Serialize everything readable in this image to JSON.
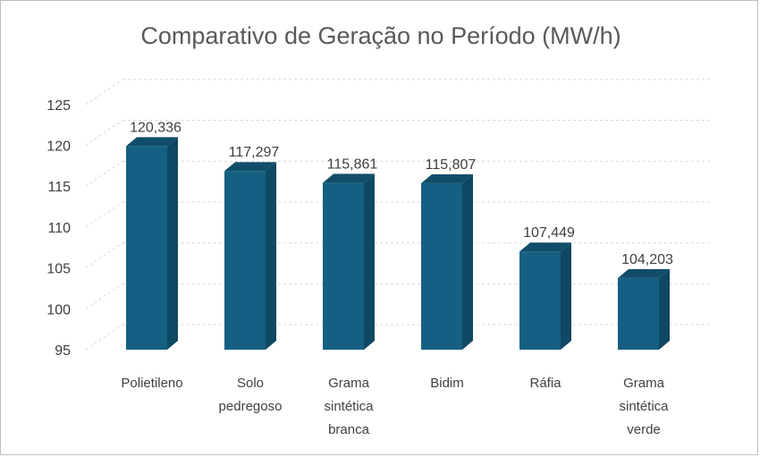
{
  "chart_data": {
    "type": "bar",
    "title": "Comparativo de Geração no Período (MW/h)",
    "categories": [
      [
        "Polietileno"
      ],
      [
        "Solo",
        "pedregoso"
      ],
      [
        "Grama",
        "sintética",
        "branca"
      ],
      [
        "Bidim"
      ],
      [
        "Ráfia"
      ],
      [
        "Grama",
        "sintética",
        "verde"
      ]
    ],
    "values": [
      120.336,
      117.297,
      115.861,
      115.807,
      107.449,
      104.203
    ],
    "data_labels": [
      "120,336",
      "117,297",
      "115,861",
      "115,807",
      "107,449",
      "104,203"
    ],
    "ylim": [
      95,
      125
    ],
    "yticks": [
      "95",
      "100",
      "105",
      "110",
      "115",
      "120",
      "125"
    ],
    "grid": true,
    "legend": "none",
    "colors": {
      "bar_front": "#156082",
      "bar_side": "#0e4863",
      "bar_top": "#114d69",
      "grid": "#d9d9d9",
      "text": "#404040",
      "title": "#595959"
    }
  }
}
